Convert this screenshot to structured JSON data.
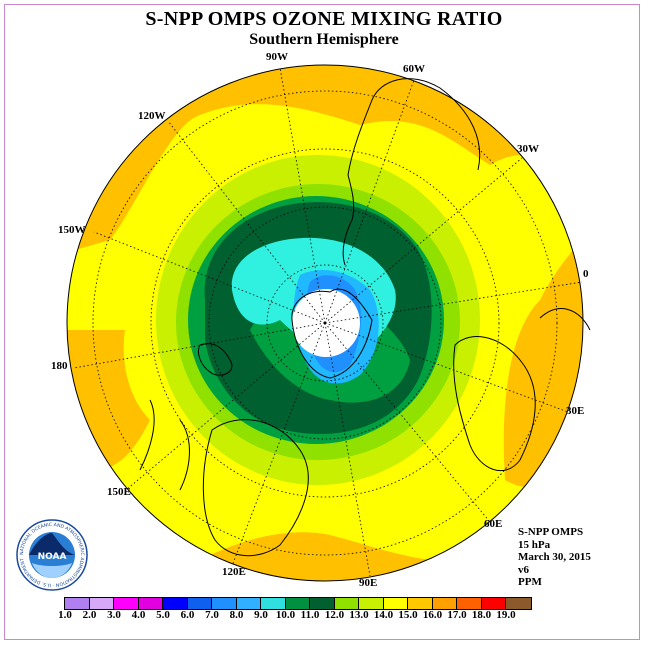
{
  "title": "S-NPP OMPS OZONE MIXING RATIO",
  "subtitle": "Southern Hemisphere",
  "longitude_labels": [
    "90W",
    "60W",
    "120W",
    "30W",
    "150W",
    "0",
    "180",
    "30E",
    "150E",
    "60E",
    "120E",
    "90E"
  ],
  "info": {
    "instrument": "S-NPP OMPS",
    "level": "15 hPa",
    "date": "March 30, 2015",
    "version": "v6",
    "units": "PPM"
  },
  "colorbar": {
    "ticks": [
      "1.0",
      "2.0",
      "3.0",
      "4.0",
      "5.0",
      "6.0",
      "7.0",
      "8.0",
      "9.0",
      "10.0",
      "11.0",
      "12.0",
      "13.0",
      "14.0",
      "15.0",
      "16.0",
      "17.0",
      "18.0",
      "19.0"
    ],
    "colors": [
      "#b080f0",
      "#d8a8f8",
      "#ff00ff",
      "#e000e0",
      "#0000ff",
      "#1060f0",
      "#2090ff",
      "#30b0ff",
      "#30e0e0",
      "#009040",
      "#006030",
      "#90e000",
      "#c8f000",
      "#ffff00",
      "#ffc800",
      "#ffa000",
      "#ff6000",
      "#ff0000",
      "#8b5a2b"
    ]
  },
  "logo": {
    "text": "NOAA",
    "ring_text": "NATIONAL OCEANIC AND ATMOSPHERIC ADMINISTRATION · U.S. DEPARTMENT OF COMMERCE"
  },
  "colors": {
    "yellow": "#ffff00",
    "orange": "#ffc000",
    "light_green": "#c8f000",
    "green": "#90e000",
    "mid_green": "#00a040",
    "dark_green": "#006030",
    "cyan": "#30f0e0",
    "blue": "#20b8ff",
    "deep_blue": "#2090ff"
  }
}
